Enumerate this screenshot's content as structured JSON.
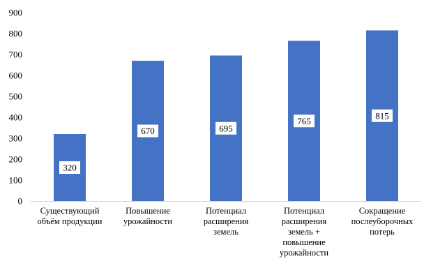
{
  "chart_data": {
    "type": "bar",
    "categories": [
      [
        "Существующий",
        "объём продукции"
      ],
      [
        "Повышение",
        "урожайности"
      ],
      [
        "Потенциал",
        "расширения",
        "земель"
      ],
      [
        "Потенциал",
        "расширения",
        "земель +",
        "повышение",
        "урожайности"
      ],
      [
        "Сокращение",
        "послеуборочных",
        "потерь"
      ]
    ],
    "values": [
      320,
      670,
      695,
      765,
      815
    ],
    "data_labels": [
      "320",
      "670",
      "695",
      "765",
      "815"
    ],
    "y_ticks": [
      0,
      100,
      200,
      300,
      400,
      500,
      600,
      700,
      800,
      900
    ],
    "ylim": [
      0,
      900
    ],
    "bar_color": "#4472C4",
    "grid": false,
    "legend": "none"
  }
}
